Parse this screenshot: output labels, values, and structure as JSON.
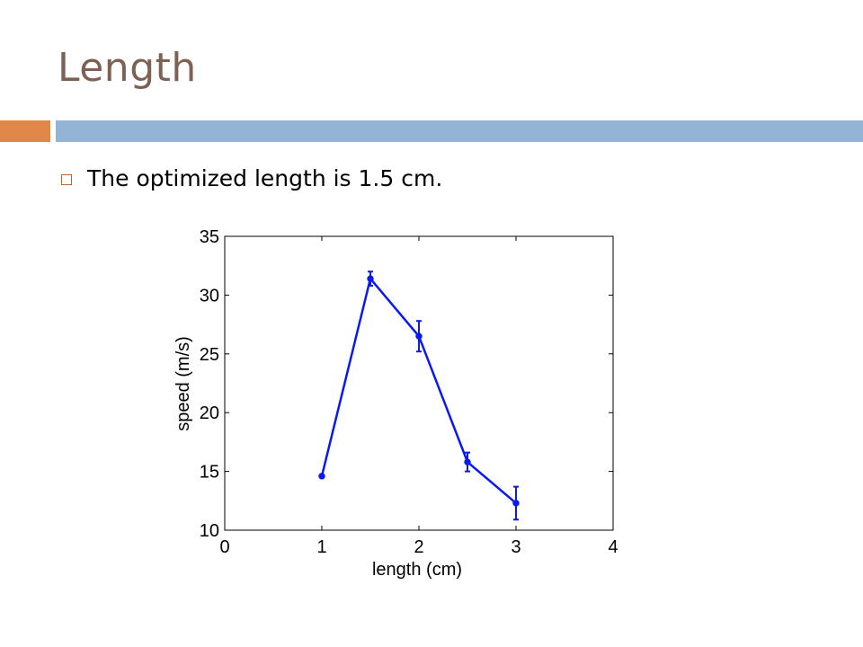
{
  "slide": {
    "title": "Length",
    "bullet": "The optimized length is 1.5 cm."
  },
  "colors": {
    "title": "#7f6153",
    "accent_bar": "#e0884a",
    "main_bar": "#94b4d6",
    "bullet_box": "#c0652a",
    "series": "#0a1aef"
  },
  "icons": {
    "bullet": "square-bullet-icon"
  },
  "chart_data": {
    "type": "line",
    "title": "",
    "xlabel": "length (cm)",
    "ylabel": "speed (m/s)",
    "xlim": [
      0,
      4
    ],
    "ylim": [
      10,
      35
    ],
    "xticks": [
      0,
      1,
      2,
      3,
      4
    ],
    "yticks": [
      10,
      15,
      20,
      25,
      30,
      35
    ],
    "grid": false,
    "legend": "none",
    "series": [
      {
        "x": [
          1,
          1.5,
          2,
          2.5,
          3
        ],
        "y": [
          14.6,
          31.4,
          26.5,
          15.8,
          12.3
        ],
        "error": [
          0.1,
          0.6,
          1.3,
          0.8,
          1.4
        ]
      }
    ]
  }
}
